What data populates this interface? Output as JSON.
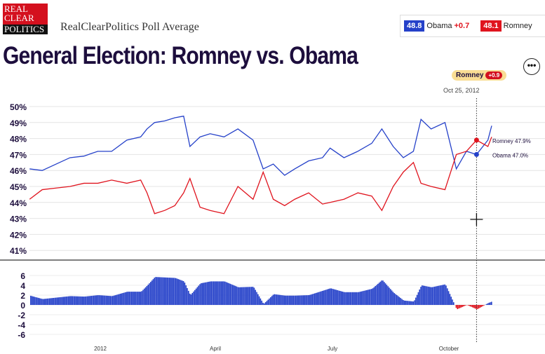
{
  "header": {
    "logo_text": "REAL CLEAR POLITICS",
    "subtitle": "RealClearPolitics Poll Average",
    "title": "General Election: Romney vs. Obama",
    "more_icon": "ellipsis-icon"
  },
  "legend": {
    "obama_value": "48.8",
    "obama_label": "Obama",
    "obama_change": "+0.7",
    "romney_value": "48.1",
    "romney_label": "Romney"
  },
  "tooltip": {
    "leader": "Romney",
    "spread": "+0.9",
    "date": "Oct 25, 2012",
    "romney_label": "Romney 47.9%",
    "obama_label": "Obama 47.0%"
  },
  "colors": {
    "obama": "#2541c9",
    "romney": "#e0141e",
    "title": "#1d0e3d"
  },
  "chart_data": [
    {
      "type": "line",
      "ylim": [
        41,
        50
      ],
      "ytick_labels": [
        "50%",
        "49%",
        "48%",
        "47%",
        "46%",
        "45%",
        "44%",
        "43%",
        "42%",
        "41%"
      ],
      "grid": true,
      "x": [
        "2011-11-06",
        "2011-11-16",
        "2011-11-27",
        "2011-12-08",
        "2011-12-19",
        "2011-12-30",
        "2012-01-10",
        "2012-01-22",
        "2012-02-02",
        "2012-02-07",
        "2012-02-13",
        "2012-02-21",
        "2012-02-29",
        "2012-03-07",
        "2012-03-12",
        "2012-03-20",
        "2012-03-28",
        "2012-04-08",
        "2012-04-19",
        "2012-05-01",
        "2012-05-09",
        "2012-05-17",
        "2012-05-26",
        "2012-06-03",
        "2012-06-14",
        "2012-06-25",
        "2012-07-01",
        "2012-07-12",
        "2012-07-23",
        "2012-08-03",
        "2012-08-11",
        "2012-08-20",
        "2012-08-28",
        "2012-09-05",
        "2012-09-11",
        "2012-09-19",
        "2012-09-30",
        "2012-10-09",
        "2012-10-17",
        "2012-10-25",
        "2012-11-03",
        "2012-11-06"
      ],
      "series": [
        {
          "name": "Obama",
          "values": [
            46.1,
            46.0,
            46.4,
            46.8,
            46.9,
            47.2,
            47.2,
            47.9,
            48.1,
            48.6,
            49.0,
            49.1,
            49.3,
            49.4,
            47.5,
            48.1,
            48.3,
            48.1,
            48.6,
            47.9,
            46.1,
            46.4,
            45.7,
            46.1,
            46.6,
            46.8,
            47.4,
            46.8,
            47.2,
            47.7,
            48.6,
            47.5,
            46.8,
            47.2,
            49.2,
            48.6,
            49.0,
            46.1,
            47.2,
            47.0,
            47.9,
            48.8
          ]
        },
        {
          "name": "Romney",
          "values": [
            44.2,
            44.8,
            44.9,
            45.0,
            45.2,
            45.2,
            45.4,
            45.2,
            45.4,
            44.6,
            43.3,
            43.5,
            43.8,
            44.6,
            45.5,
            43.7,
            43.5,
            43.3,
            45.0,
            44.2,
            45.9,
            44.2,
            43.8,
            44.2,
            44.6,
            43.9,
            44.0,
            44.2,
            44.6,
            44.4,
            43.5,
            45.0,
            45.9,
            46.5,
            45.2,
            45.0,
            44.8,
            47.0,
            47.2,
            47.9,
            47.5,
            48.1
          ]
        }
      ]
    },
    {
      "type": "bar",
      "title": "",
      "ylim": [
        -6,
        6
      ],
      "ytick_labels": [
        "6",
        "4",
        "2",
        "0",
        "-2",
        "-4",
        "-6"
      ],
      "values_are": "Obama minus Romney spread",
      "xtick_labels": [
        "2012",
        "April",
        "July",
        "October"
      ]
    }
  ]
}
